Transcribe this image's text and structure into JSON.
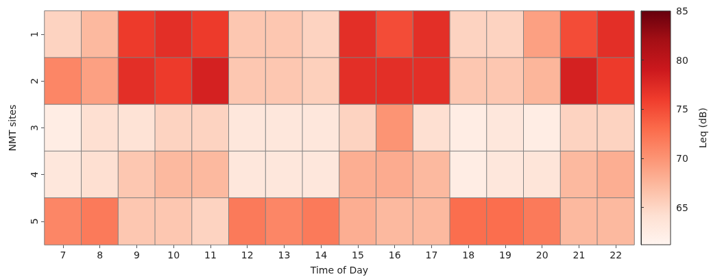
{
  "chart_data": {
    "type": "heatmap",
    "xlabel": "Time of Day",
    "ylabel": "NMT sites",
    "clabel": "Leq (dB)",
    "categories": [
      "7",
      "8",
      "9",
      "10",
      "11",
      "12",
      "13",
      "14",
      "15",
      "16",
      "17",
      "18",
      "19",
      "20",
      "21",
      "22"
    ],
    "y_categories": [
      "1",
      "2",
      "3",
      "4",
      "5"
    ],
    "cells": [
      [
        65.2,
        67.3,
        76.2,
        77.1,
        76.2,
        66.2,
        66.2,
        65.2,
        77.1,
        75,
        77.1,
        65.2,
        65.2,
        69.1,
        75,
        77.1
      ],
      [
        71,
        69.1,
        77.1,
        76.2,
        78.3,
        66.2,
        66.2,
        65.5,
        77.1,
        77.1,
        77.1,
        66.2,
        66.2,
        67.5,
        78.3,
        76.2
      ],
      [
        62.4,
        64.2,
        63.8,
        65.2,
        65.2,
        63.2,
        63.2,
        63.2,
        65.2,
        70,
        64.2,
        62.4,
        63.2,
        62.4,
        65.2,
        65.2
      ],
      [
        63.2,
        64.2,
        66.2,
        67.3,
        67.3,
        63.2,
        63.2,
        63.2,
        68.1,
        68.3,
        67.3,
        62.4,
        63.2,
        63.5,
        67.3,
        68.1
      ],
      [
        71,
        71.9,
        66.2,
        66.2,
        65.2,
        71.9,
        71,
        71.9,
        68.1,
        67.3,
        67.3,
        72.8,
        72.8,
        71.9,
        67.3,
        67.3
      ]
    ],
    "clim": [
      61.2,
      85
    ],
    "cticks": [
      65,
      70,
      75,
      80,
      85
    ]
  }
}
